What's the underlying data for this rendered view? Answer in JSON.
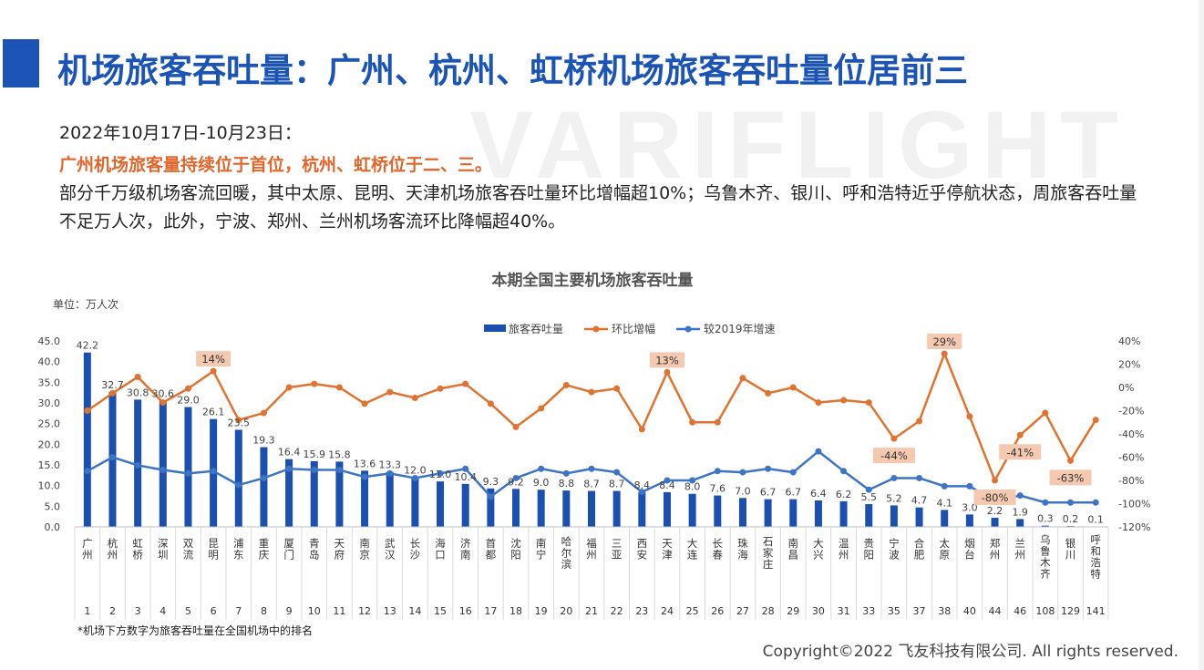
{
  "header": {
    "title": "机场旅客吞吐量：广州、杭州、虹桥机场旅客吞吐量位居前三",
    "watermark": "VARIFLIGHT"
  },
  "summary": {
    "date": "2022年10月17日-10月23日：",
    "highlight": "广州机场旅客量持续位于首位，杭州、虹桥位于二、三。",
    "body": "部分千万级机场客流回暖，其中太原、昆明、天津机场旅客吞吐量环比增幅超10%；乌鲁木齐、银川、呼和浩特近乎停航状态，周旅客吞吐量不足万人次，此外，宁波、郑州、兰州机场客流环比降幅超40%。"
  },
  "footer": {
    "footnote": "*机场下方数字为旅客吞吐量在全国机场中的排名",
    "copyright": "Copyright©2022 飞友科技有限公司. All rights reserved."
  },
  "colors": {
    "bar": "#1b4fb0",
    "growth": "#e0732f",
    "vs2019": "#3d74c6",
    "callout_bg": "#f4c9b0"
  },
  "chart_data": {
    "type": "bar",
    "title": "本期全国主要机场旅客吞吐量",
    "unit_label": "单位：万人次",
    "categories": [
      "广州",
      "杭州",
      "虹桥",
      "深圳",
      "双流",
      "昆明",
      "浦东",
      "重庆",
      "厦门",
      "青岛",
      "天府",
      "南京",
      "武汉",
      "长沙",
      "海口",
      "济南",
      "首都",
      "沈阳",
      "南宁",
      "哈尔滨",
      "福州",
      "三亚",
      "西安",
      "天津",
      "大连",
      "长春",
      "珠海",
      "石家庄",
      "南昌",
      "大兴",
      "温州",
      "贵阳",
      "宁波",
      "合肥",
      "太原",
      "烟台",
      "郑州",
      "兰州",
      "乌鲁木齐",
      "银川",
      "呼和浩特"
    ],
    "ranks": [
      "1",
      "2",
      "3",
      "4",
      "5",
      "6",
      "7",
      "8",
      "9",
      "10",
      "11",
      "12",
      "13",
      "14",
      "15",
      "16",
      "17",
      "18",
      "19",
      "20",
      "21",
      "22",
      "23",
      "24",
      "25",
      "26",
      "27",
      "28",
      "29",
      "30",
      "31",
      "33",
      "35",
      "37",
      "38",
      "40",
      "44",
      "46",
      "108",
      "129",
      "141"
    ],
    "series": [
      {
        "name": "旅客吞吐量",
        "type": "bar",
        "axis": "left",
        "values": [
          42.2,
          32.7,
          30.8,
          30.6,
          29.0,
          26.1,
          23.5,
          19.3,
          16.4,
          15.9,
          15.8,
          13.6,
          13.3,
          12.0,
          11.0,
          10.4,
          9.3,
          9.2,
          9.0,
          8.8,
          8.7,
          8.7,
          8.4,
          8.4,
          8.0,
          7.6,
          7.0,
          6.7,
          6.7,
          6.4,
          6.2,
          5.5,
          5.2,
          4.7,
          4.1,
          3.0,
          2.2,
          1.9,
          0.3,
          0.2,
          0.1
        ]
      },
      {
        "name": "环比增幅",
        "type": "line",
        "axis": "right",
        "unit": "%",
        "values": [
          -20,
          -5,
          9,
          -13,
          -1,
          14,
          -28,
          -22,
          0,
          3,
          0,
          -14,
          -4,
          -9,
          -1,
          3,
          -14,
          -34,
          -18,
          2,
          -4,
          -1,
          -36,
          13,
          -30,
          -30,
          8,
          -5,
          0,
          -13,
          -11,
          -13,
          -44,
          -29,
          29,
          -25,
          -80,
          -41,
          -22,
          -63,
          -28
        ]
      },
      {
        "name": "较2019年增速",
        "type": "line",
        "axis": "right",
        "unit": "%",
        "values": [
          -72,
          -60,
          -67,
          -71,
          -74,
          -72,
          -84,
          -78,
          -70,
          -71,
          -71,
          -77,
          -74,
          -78,
          -74,
          -70,
          -94,
          -78,
          -70,
          -74,
          -70,
          -73,
          -90,
          -80,
          -80,
          -72,
          -73,
          -70,
          -73,
          -55,
          -72,
          -88,
          -78,
          -78,
          -85,
          -85,
          -98,
          -93,
          -99,
          -99,
          -99
        ]
      }
    ],
    "y_left": {
      "min": 0,
      "max": 45,
      "ticks": [
        "0.0",
        "5.0",
        "10.0",
        "15.0",
        "20.0",
        "25.0",
        "30.0",
        "35.0",
        "40.0",
        "45.0"
      ]
    },
    "y_right": {
      "min": -120,
      "max": 40,
      "ticks": [
        "-120%",
        "-100%",
        "-80%",
        "-60%",
        "-40%",
        "-20%",
        "0%",
        "20%",
        "40%"
      ]
    },
    "callouts": [
      {
        "index": 5,
        "label": "14%"
      },
      {
        "index": 23,
        "label": "13%"
      },
      {
        "index": 34,
        "label": "29%"
      },
      {
        "index": 32,
        "label": "-44%"
      },
      {
        "index": 36,
        "label": "-80%"
      },
      {
        "index": 37,
        "label": "-41%"
      },
      {
        "index": 39,
        "label": "-63%"
      }
    ],
    "legend": {
      "position": "top"
    }
  }
}
